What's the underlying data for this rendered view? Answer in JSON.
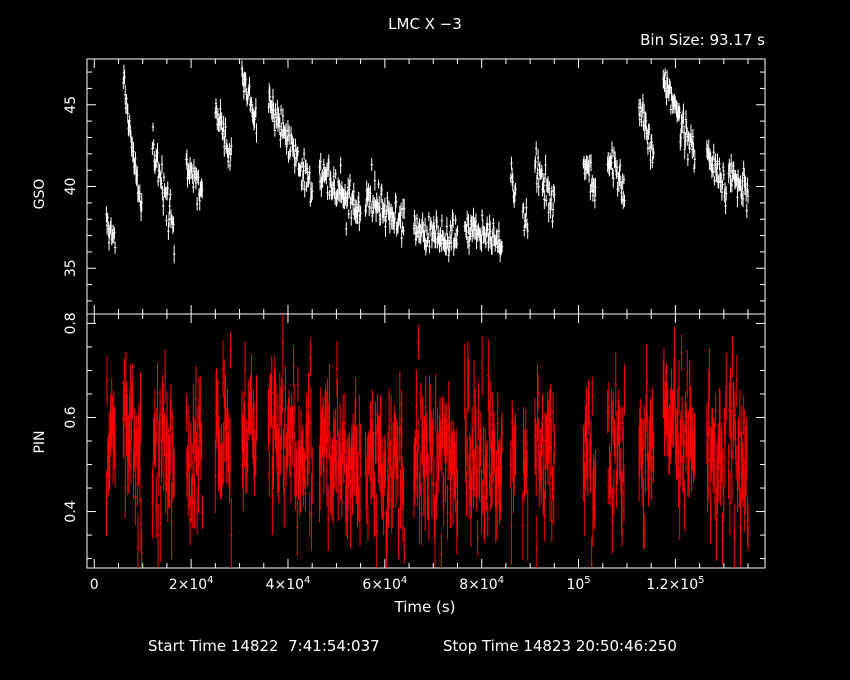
{
  "title": "LMC X −3",
  "bin_size": "Bin Size: 93.17 s",
  "footer": {
    "start": "Start Time 14822  7:41:54:037",
    "stop": "Stop Time 14823 20:50:46:250"
  },
  "colors": {
    "background": "#000000",
    "axes": "#ffffff",
    "gso_series": "#ffffff",
    "pin_series": "#ff0000"
  },
  "chart_data": [
    {
      "type": "scatter",
      "name": "GSO panel",
      "ylabel": "GSO",
      "ylim": [
        32.2,
        47.8
      ],
      "xlim": [
        -1500,
        138500
      ],
      "ytick_labels": [
        {
          "v": 35,
          "t": "35"
        },
        {
          "v": 40,
          "t": "40"
        },
        {
          "v": 45,
          "t": "45"
        }
      ],
      "series": [
        {
          "color": "#ffffff",
          "segments": [
            {
              "x0": 2500,
              "x1": 4300,
              "y0": 37.5,
              "y1": 36.6
            },
            {
              "x0": 6000,
              "x1": 9800,
              "y0": 46.5,
              "y1": 38.2
            },
            {
              "x0": 12000,
              "x1": 16500,
              "y0": 42.8,
              "y1": 37.4
            },
            {
              "x0": 19000,
              "x1": 22300,
              "y0": 41.6,
              "y1": 39.7
            },
            {
              "x0": 25000,
              "x1": 28300,
              "y0": 44.8,
              "y1": 41.5
            },
            {
              "x0": 30500,
              "x1": 33500,
              "y0": 46.8,
              "y1": 43.7
            },
            {
              "x0": 36000,
              "x1": 45000,
              "y0": 45.3,
              "y1": 39.5
            },
            {
              "x0": 46500,
              "x1": 55000,
              "y0": 41.2,
              "y1": 38.1
            },
            {
              "x0": 56000,
              "x1": 64000,
              "y0": 39.4,
              "y1": 37.8
            },
            {
              "x0": 66000,
              "x1": 75000,
              "y0": 37.4,
              "y1": 36.9
            },
            {
              "x0": 76500,
              "x1": 84200,
              "y0": 37.3,
              "y1": 36.7
            },
            {
              "x0": 86000,
              "x1": 87000,
              "y0": 41.3,
              "y1": 39.6
            },
            {
              "x0": 88500,
              "x1": 89500,
              "y0": 38.5,
              "y1": 37.7
            },
            {
              "x0": 91000,
              "x1": 95000,
              "y0": 41.7,
              "y1": 38.6
            },
            {
              "x0": 101000,
              "x1": 103500,
              "y0": 41.6,
              "y1": 39.6
            },
            {
              "x0": 106000,
              "x1": 109500,
              "y0": 42.0,
              "y1": 39.8
            },
            {
              "x0": 112500,
              "x1": 115500,
              "y0": 45.1,
              "y1": 41.8
            },
            {
              "x0": 117500,
              "x1": 124000,
              "y0": 46.8,
              "y1": 41.7
            },
            {
              "x0": 126500,
              "x1": 130500,
              "y0": 42.2,
              "y1": 39.9
            },
            {
              "x0": 131000,
              "x1": 135000,
              "y0": 41.2,
              "y1": 39.1
            }
          ],
          "count": 720,
          "seed": 7,
          "scatter": 0.55,
          "err": 0.45
        }
      ]
    },
    {
      "type": "scatter",
      "name": "PIN panel",
      "ylabel": "PIN",
      "xlabel": "Time (s)",
      "ylim": [
        0.28,
        0.82
      ],
      "xlim": [
        -1500,
        138500
      ],
      "ytick_labels": [
        {
          "v": 0.4,
          "t": "0.4"
        },
        {
          "v": 0.6,
          "t": "0.6"
        },
        {
          "v": 0.8,
          "t": "0.8"
        }
      ],
      "xtick_labels": [
        {
          "v": 0,
          "t": "0"
        },
        {
          "v": 20000,
          "m": "2",
          "e": "4"
        },
        {
          "v": 40000,
          "m": "4",
          "e": "4"
        },
        {
          "v": 60000,
          "m": "6",
          "e": "4"
        },
        {
          "v": 80000,
          "m": "8",
          "e": "4"
        },
        {
          "v": 100000,
          "m": "",
          "e": "5"
        },
        {
          "v": 120000,
          "m": "1.2",
          "e": "5"
        }
      ],
      "series": [
        {
          "color": "#ff0000",
          "segments": [
            {
              "x0": 2500,
              "x1": 4300,
              "y0": 0.54,
              "y1": 0.52
            },
            {
              "x0": 6000,
              "x1": 9800,
              "y0": 0.56,
              "y1": 0.5
            },
            {
              "x0": 12000,
              "x1": 16500,
              "y0": 0.53,
              "y1": 0.5
            },
            {
              "x0": 19000,
              "x1": 22300,
              "y0": 0.53,
              "y1": 0.5
            },
            {
              "x0": 25000,
              "x1": 28300,
              "y0": 0.58,
              "y1": 0.54
            },
            {
              "x0": 30500,
              "x1": 33500,
              "y0": 0.6,
              "y1": 0.57
            },
            {
              "x0": 36000,
              "x1": 45000,
              "y0": 0.58,
              "y1": 0.52
            },
            {
              "x0": 46500,
              "x1": 55000,
              "y0": 0.54,
              "y1": 0.51
            },
            {
              "x0": 56000,
              "x1": 64000,
              "y0": 0.53,
              "y1": 0.5
            },
            {
              "x0": 66000,
              "x1": 75000,
              "y0": 0.53,
              "y1": 0.49
            },
            {
              "x0": 76500,
              "x1": 84200,
              "y0": 0.53,
              "y1": 0.5
            },
            {
              "x0": 86000,
              "x1": 87000,
              "y0": 0.54,
              "y1": 0.52
            },
            {
              "x0": 88500,
              "x1": 89500,
              "y0": 0.52,
              "y1": 0.5
            },
            {
              "x0": 91000,
              "x1": 95000,
              "y0": 0.54,
              "y1": 0.51
            },
            {
              "x0": 101000,
              "x1": 103500,
              "y0": 0.54,
              "y1": 0.51
            },
            {
              "x0": 106000,
              "x1": 109500,
              "y0": 0.54,
              "y1": 0.51
            },
            {
              "x0": 112500,
              "x1": 115500,
              "y0": 0.57,
              "y1": 0.54
            },
            {
              "x0": 117500,
              "x1": 124000,
              "y0": 0.6,
              "y1": 0.55
            },
            {
              "x0": 126500,
              "x1": 130500,
              "y0": 0.56,
              "y1": 0.52
            },
            {
              "x0": 131000,
              "x1": 135000,
              "y0": 0.56,
              "y1": 0.5
            }
          ],
          "count": 720,
          "seed": 13,
          "scatter": 0.075,
          "err": 0.06
        }
      ]
    }
  ]
}
